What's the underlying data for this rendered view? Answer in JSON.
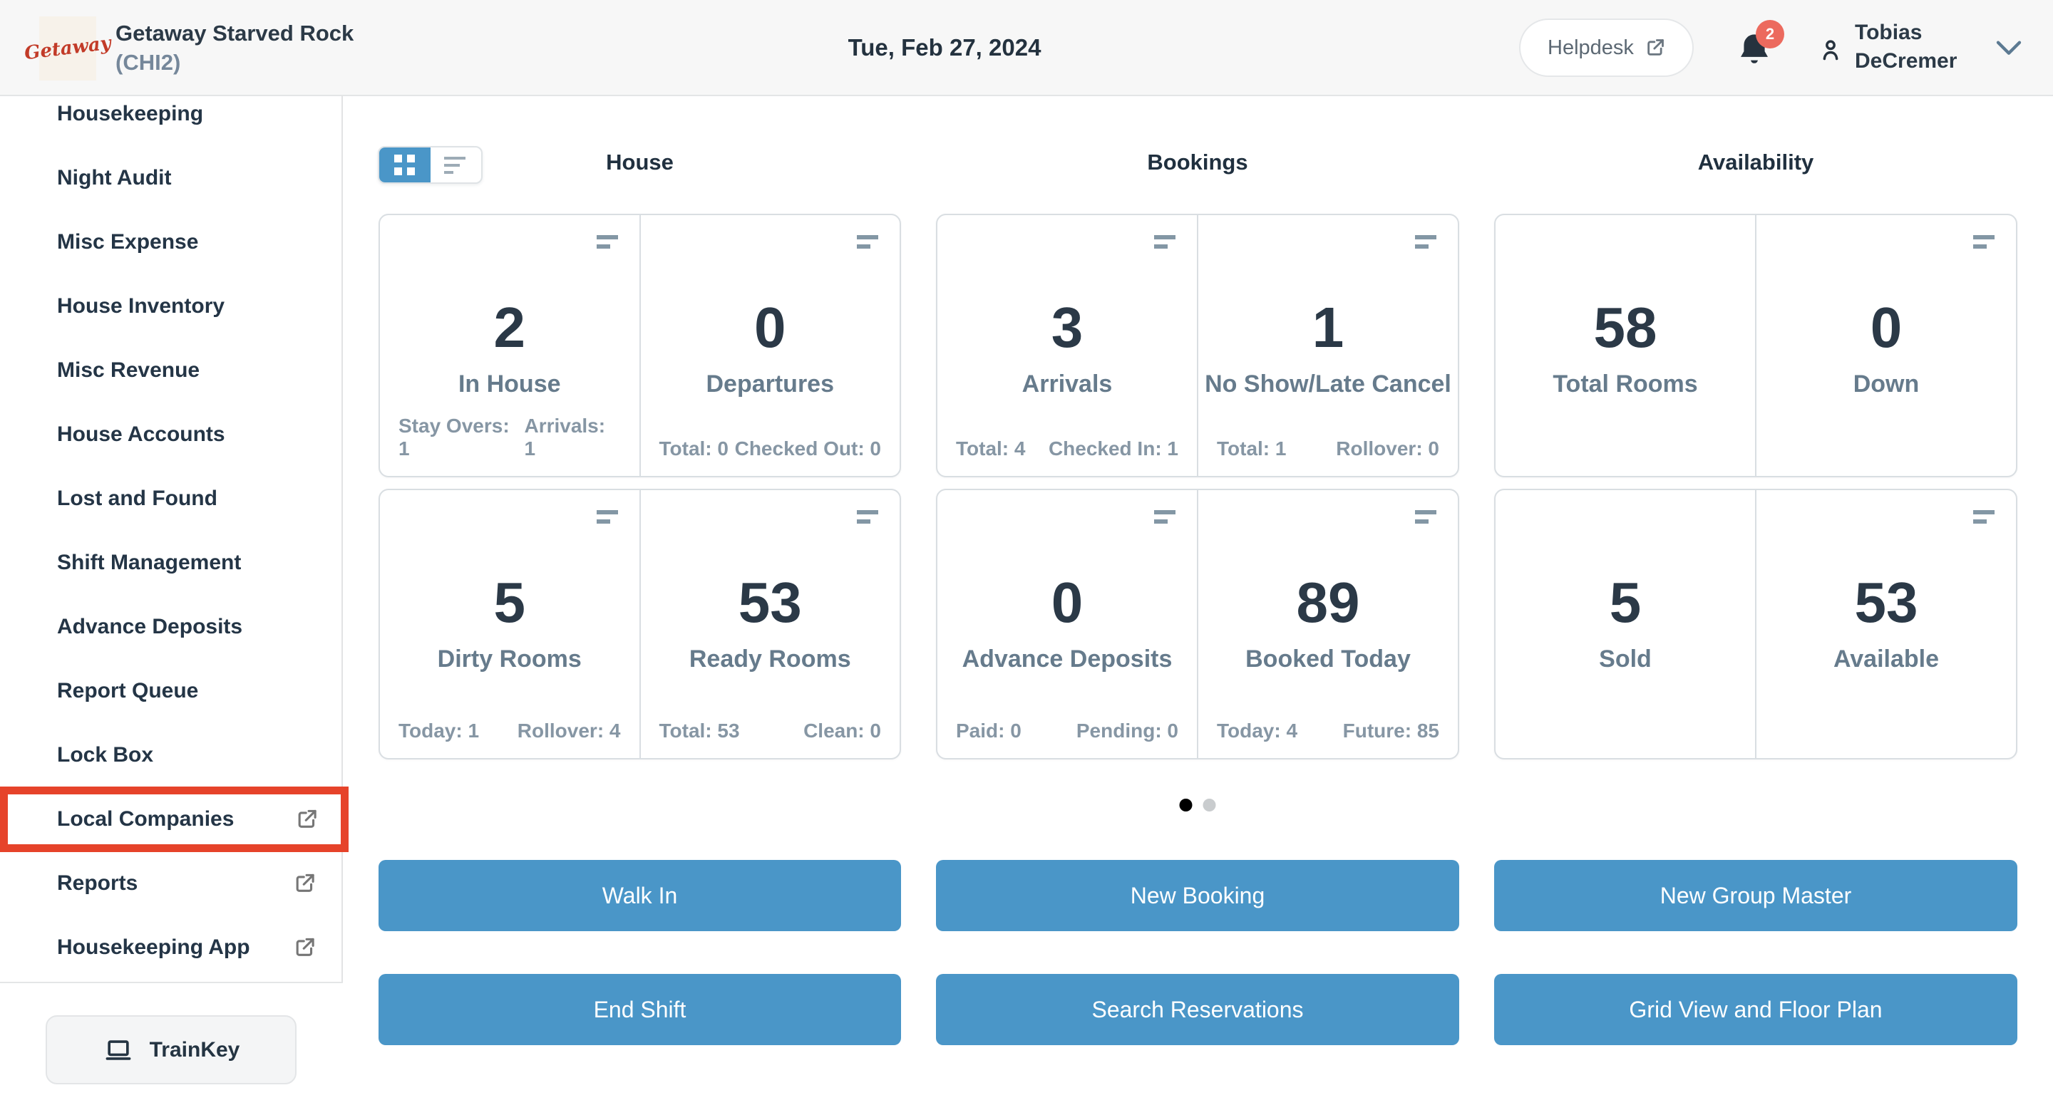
{
  "colors": {
    "accent_blue": "#4a96c8",
    "highlight_red": "#e6432a",
    "badge_red": "#ec6a5e",
    "logo_red": "#c23b28"
  },
  "header": {
    "logo_text": "Getaway",
    "property_name": "Getaway Starved Rock",
    "property_code": "(CHI2)",
    "date": "Tue, Feb 27, 2024",
    "helpdesk_label": "Helpdesk",
    "notification_count": "2",
    "user_name_line1": "Tobias",
    "user_name_line2": "DeCremer"
  },
  "sidebar": {
    "items": [
      {
        "label": "Housekeeping",
        "external": false,
        "highlighted": false
      },
      {
        "label": "Night Audit",
        "external": false,
        "highlighted": false
      },
      {
        "label": "Misc Expense",
        "external": false,
        "highlighted": false
      },
      {
        "label": "House Inventory",
        "external": false,
        "highlighted": false
      },
      {
        "label": "Misc Revenue",
        "external": false,
        "highlighted": false
      },
      {
        "label": "House Accounts",
        "external": false,
        "highlighted": false
      },
      {
        "label": "Lost and Found",
        "external": false,
        "highlighted": false
      },
      {
        "label": "Shift Management",
        "external": false,
        "highlighted": false
      },
      {
        "label": "Advance Deposits",
        "external": false,
        "highlighted": false
      },
      {
        "label": "Report Queue",
        "external": false,
        "highlighted": false
      },
      {
        "label": "Lock Box",
        "external": false,
        "highlighted": false
      },
      {
        "label": "Local Companies",
        "external": true,
        "highlighted": true
      },
      {
        "label": "Reports",
        "external": true,
        "highlighted": false
      },
      {
        "label": "Housekeeping App",
        "external": true,
        "highlighted": false
      }
    ],
    "trainkey_label": "TrainKey"
  },
  "dashboard": {
    "view_toggle": {
      "active": "grid"
    },
    "sections": [
      {
        "title": "House",
        "rows": [
          {
            "cells": [
              {
                "value": "2",
                "label": "In House",
                "icon": true,
                "stats": [
                  "Stay Overs: 1",
                  "Arrivals: 1"
                ]
              },
              {
                "value": "0",
                "label": "Departures",
                "icon": true,
                "stats": [
                  "Total: 0",
                  "Checked Out: 0"
                ]
              }
            ]
          },
          {
            "cells": [
              {
                "value": "5",
                "label": "Dirty Rooms",
                "icon": true,
                "stats": [
                  "Today: 1",
                  "Rollover: 4"
                ]
              },
              {
                "value": "53",
                "label": "Ready Rooms",
                "icon": true,
                "stats": [
                  "Total: 53",
                  "Clean: 0"
                ]
              }
            ]
          }
        ]
      },
      {
        "title": "Bookings",
        "rows": [
          {
            "cells": [
              {
                "value": "3",
                "label": "Arrivals",
                "icon": true,
                "stats": [
                  "Total: 4",
                  "Checked In: 1"
                ]
              },
              {
                "value": "1",
                "label": "No Show/Late Cancel",
                "icon": true,
                "stats": [
                  "Total: 1",
                  "Rollover: 0"
                ]
              }
            ]
          },
          {
            "cells": [
              {
                "value": "0",
                "label": "Advance Deposits",
                "icon": true,
                "stats": [
                  "Paid: 0",
                  "Pending: 0"
                ]
              },
              {
                "value": "89",
                "label": "Booked Today",
                "icon": true,
                "stats": [
                  "Today: 4",
                  "Future: 85"
                ]
              }
            ]
          }
        ]
      },
      {
        "title": "Availability",
        "rows": [
          {
            "cells": [
              {
                "value": "58",
                "label": "Total Rooms",
                "icon": false,
                "stats": []
              },
              {
                "value": "0",
                "label": "Down",
                "icon": true,
                "stats": []
              }
            ]
          },
          {
            "cells": [
              {
                "value": "5",
                "label": "Sold",
                "icon": false,
                "stats": []
              },
              {
                "value": "53",
                "label": "Available",
                "icon": true,
                "stats": []
              }
            ]
          }
        ]
      }
    ],
    "pagination": {
      "count": 2,
      "active": 0
    },
    "actions": [
      [
        "Walk In",
        "New Booking",
        "New Group Master"
      ],
      [
        "End Shift",
        "Search Reservations",
        "Grid View and Floor Plan"
      ]
    ]
  }
}
